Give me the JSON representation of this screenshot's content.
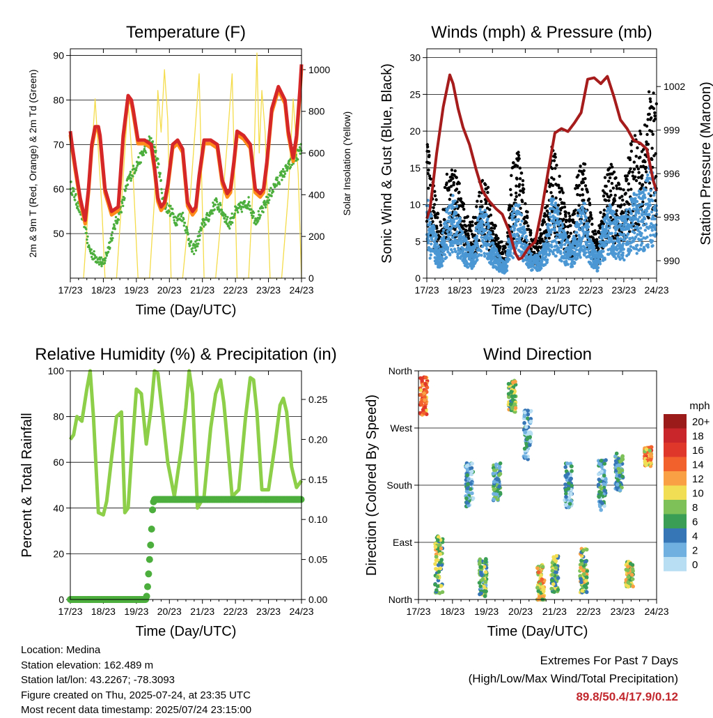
{
  "colors": {
    "temp2m": "#d62728",
    "temp9m": "#ff8c1a",
    "dewpoint": "#4cae3c",
    "solar": "#f4dc4a",
    "gust": "#000000",
    "wind": "#4a97d4",
    "pressure": "#a61c1c",
    "rh": "#8ecf4a",
    "precip": "#4cae3c"
  },
  "chart_data": [
    {
      "type": "line",
      "id": "temperature",
      "title": "Temperature (F)",
      "xlabel": "Time (Day/UTC)",
      "ylabel": "2m & 9m T (Red, Orange) & 2m Td (Green)",
      "ylabel_right": "Solar Insolation (Yellow)",
      "x_ticks": [
        "17/23",
        "18/23",
        "19/23",
        "20/23",
        "21/23",
        "22/23",
        "23/23",
        "24/23"
      ],
      "ylim": [
        40,
        91.5
      ],
      "y_ticks": [
        50,
        60,
        70,
        80,
        90
      ],
      "ylim_right": [
        0,
        1100
      ],
      "y_ticks_right": [
        0,
        200,
        400,
        600,
        800,
        1000
      ],
      "grid": "horizontal",
      "series": [
        {
          "key": "t2m",
          "x": [
            0,
            0.05,
            0.15,
            0.3,
            0.45,
            0.55,
            0.65,
            0.75,
            0.85,
            0.9,
            1.05,
            1.25,
            1.45,
            1.6,
            1.75,
            1.85,
            1.9,
            2.05,
            2.25,
            2.45,
            2.55,
            2.65,
            2.75,
            2.85,
            2.95,
            3.1,
            3.25,
            3.4,
            3.55,
            3.7,
            3.8,
            3.9,
            4.05,
            4.25,
            4.45,
            4.6,
            4.75,
            4.85,
            4.95,
            5.05,
            5.25,
            5.45,
            5.6,
            5.75,
            5.85,
            5.95,
            6.1,
            6.3,
            6.5,
            6.6,
            6.75,
            6.85,
            6.95,
            7.0
          ],
          "values": [
            73,
            70,
            65,
            58,
            53,
            60,
            70,
            74,
            74,
            72,
            60,
            55,
            56,
            72,
            81,
            80,
            78,
            71,
            71,
            70,
            65,
            58,
            56,
            57,
            61,
            70,
            71,
            69,
            57,
            55,
            56,
            63,
            71,
            71,
            70,
            62,
            59,
            60,
            66,
            73,
            72,
            70,
            60,
            59,
            60,
            66,
            78,
            83,
            80,
            73,
            67,
            72,
            82,
            88
          ]
        },
        {
          "key": "td2m",
          "x": [
            0,
            0.15,
            0.3,
            0.45,
            0.55,
            0.7,
            0.9,
            1.0,
            1.2,
            1.4,
            1.6,
            1.75,
            1.9,
            2.05,
            2.2,
            2.4,
            2.55,
            2.7,
            2.8,
            2.9,
            3.05,
            3.2,
            3.4,
            3.55,
            3.7,
            3.85,
            4.0,
            4.2,
            4.4,
            4.6,
            4.8,
            5.0,
            5.2,
            5.4,
            5.6,
            5.8,
            6.0,
            6.2,
            6.4,
            6.6,
            6.8,
            7.0
          ],
          "values": [
            61,
            58,
            55,
            52,
            47,
            45,
            44,
            43,
            48,
            53,
            57,
            62,
            64,
            66,
            68,
            71,
            69,
            64,
            58,
            56,
            55,
            53,
            54,
            50,
            46,
            48,
            52,
            54,
            57,
            55,
            52,
            55,
            56,
            57,
            53,
            55,
            58,
            61,
            63,
            65,
            67,
            69
          ]
        },
        {
          "key": "solar",
          "x": [
            0.4,
            0.55,
            0.75,
            0.95,
            1.05,
            1.4,
            1.6,
            1.75,
            1.9,
            2.05,
            2.4,
            2.55,
            2.65,
            2.75,
            2.85,
            2.95,
            3.05,
            3.4,
            3.6,
            3.75,
            3.9,
            4.05,
            4.4,
            4.6,
            4.75,
            4.9,
            5.05,
            5.4,
            5.55,
            5.65,
            5.72,
            5.8,
            5.9,
            6.05,
            6.4,
            6.6,
            6.75,
            6.9,
            7.0
          ],
          "values": [
            0,
            350,
            860,
            350,
            0,
            0,
            480,
            850,
            500,
            0,
            0,
            380,
            900,
            700,
            1000,
            760,
            0,
            0,
            320,
            650,
            980,
            0,
            0,
            350,
            650,
            980,
            0,
            0,
            500,
            1080,
            600,
            900,
            700,
            0,
            0,
            400,
            860,
            500,
            0
          ]
        }
      ]
    },
    {
      "type": "scatter",
      "id": "winds",
      "title": "Winds (mph) & Pressure (mb)",
      "xlabel": "Time (Day/UTC)",
      "ylabel": "Sonic Wind & Gust (Blue, Black)",
      "ylabel_right": "Station Pressure (Maroon)",
      "x_ticks": [
        "17/23",
        "18/23",
        "19/23",
        "20/23",
        "21/23",
        "22/23",
        "23/23",
        "24/23"
      ],
      "ylim": [
        0,
        31.2
      ],
      "y_ticks": [
        0,
        5,
        10,
        15,
        20,
        25,
        30
      ],
      "ylim_right": [
        988.8,
        1004.6
      ],
      "y_ticks_right": [
        990,
        993,
        996,
        999,
        1002
      ],
      "grid": "horizontal",
      "series": [
        {
          "key": "wind_env",
          "x": [
            0,
            0.2,
            0.4,
            0.6,
            0.8,
            1.0,
            1.2,
            1.4,
            1.6,
            1.8,
            2.0,
            2.2,
            2.4,
            2.6,
            2.8,
            3.0,
            3.2,
            3.4,
            3.6,
            3.8,
            4.0,
            4.2,
            4.4,
            4.6,
            4.8,
            5.0,
            5.2,
            5.4,
            5.6,
            5.8,
            6.0,
            6.2,
            6.4,
            6.6,
            6.8,
            7.0
          ],
          "values": [
            11,
            7,
            4,
            9,
            11,
            8,
            5,
            4,
            9,
            9,
            5,
            3,
            2,
            9,
            10,
            6,
            3,
            3,
            5,
            11,
            9,
            6,
            4,
            9,
            10,
            5,
            3,
            8,
            10,
            8,
            8,
            11,
            11,
            12,
            15,
            12
          ]
        },
        {
          "key": "gust_env",
          "x": [
            0,
            0.2,
            0.4,
            0.6,
            0.8,
            1.0,
            1.2,
            1.4,
            1.6,
            1.8,
            2.0,
            2.2,
            2.4,
            2.6,
            2.8,
            3.0,
            3.2,
            3.4,
            3.6,
            3.8,
            4.0,
            4.2,
            4.4,
            4.6,
            4.8,
            5.0,
            5.2,
            5.4,
            5.6,
            5.8,
            6.0,
            6.2,
            6.4,
            6.6,
            6.8,
            7.0
          ],
          "values": [
            18,
            12,
            7,
            13,
            15,
            12,
            8,
            7,
            12,
            13,
            8,
            5,
            4,
            14,
            16,
            10,
            5,
            5,
            9,
            17,
            14,
            10,
            7,
            14,
            16,
            8,
            5,
            12,
            15,
            12,
            12,
            17,
            18,
            20,
            24,
            22
          ]
        },
        {
          "key": "pressure",
          "x": [
            0,
            0.1,
            0.3,
            0.5,
            0.7,
            0.8,
            0.95,
            1.1,
            1.3,
            1.5,
            1.7,
            1.9,
            2.1,
            2.3,
            2.5,
            2.7,
            2.8,
            2.9,
            3.1,
            3.3,
            3.5,
            3.7,
            3.9,
            4.1,
            4.3,
            4.5,
            4.7,
            4.9,
            5.1,
            5.3,
            5.5,
            5.7,
            5.9,
            6.1,
            6.3,
            6.5,
            6.7,
            6.9,
            7.0
          ],
          "values": [
            992.9,
            993.6,
            997.4,
            1000.6,
            1002.8,
            1002.2,
            1000.5,
            999.2,
            998.0,
            996.3,
            994.8,
            994.1,
            993.6,
            993.2,
            992.1,
            990.5,
            990.1,
            990.2,
            990.9,
            991.3,
            993.5,
            996.2,
            998.8,
            999.1,
            998.9,
            999.5,
            1000.2,
            1002.5,
            1002.6,
            1002.2,
            1002.7,
            1001.3,
            999.7,
            999.1,
            998.3,
            998.1,
            997.7,
            995.5,
            994.8
          ]
        }
      ]
    },
    {
      "type": "line",
      "id": "humidity",
      "title": "Relative Humidity (%) & Precipitation (in)",
      "xlabel": "Time (Day/UTC)",
      "ylabel": "Percent & Total Rainfall",
      "x_ticks": [
        "17/23",
        "18/23",
        "19/23",
        "20/23",
        "21/23",
        "22/23",
        "23/23",
        "24/23"
      ],
      "ylim": [
        0,
        100
      ],
      "y_ticks": [
        0,
        20,
        40,
        60,
        80,
        100
      ],
      "ylim_right": [
        0,
        0.2857
      ],
      "y_ticks_right": [
        0.0,
        0.05,
        0.1,
        0.15,
        0.2,
        0.25
      ],
      "grid": "horizontal",
      "series": [
        {
          "key": "rh",
          "x": [
            0,
            0.1,
            0.2,
            0.35,
            0.5,
            0.6,
            0.7,
            0.85,
            1.0,
            1.1,
            1.25,
            1.4,
            1.55,
            1.65,
            1.75,
            1.85,
            2.0,
            2.15,
            2.3,
            2.45,
            2.55,
            2.65,
            2.8,
            2.95,
            3.15,
            3.35,
            3.5,
            3.6,
            3.7,
            3.85,
            4.05,
            4.25,
            4.4,
            4.55,
            4.65,
            4.75,
            4.9,
            5.1,
            5.3,
            5.45,
            5.55,
            5.65,
            5.8,
            6.0,
            6.2,
            6.35,
            6.45,
            6.55,
            6.7,
            6.85,
            7.0
          ],
          "values": [
            70,
            72,
            80,
            78,
            92,
            100,
            80,
            38,
            37,
            43,
            62,
            80,
            82,
            38,
            40,
            62,
            92,
            90,
            68,
            84,
            100,
            99,
            80,
            60,
            45,
            65,
            84,
            100,
            90,
            40,
            45,
            75,
            90,
            96,
            86,
            70,
            45,
            48,
            79,
            97,
            96,
            82,
            48,
            48,
            68,
            85,
            88,
            82,
            58,
            49,
            52
          ]
        },
        {
          "key": "precip",
          "x": [
            0,
            1.5,
            2.3,
            2.35,
            2.4,
            2.45,
            2.5,
            2.55,
            7.0
          ],
          "values": [
            0,
            0,
            0,
            0.02,
            0.05,
            0.08,
            0.12,
            0.125,
            0.125
          ]
        }
      ]
    },
    {
      "type": "scatter",
      "id": "wind_direction",
      "title": "Wind Direction",
      "xlabel": "Time (Day/UTC)",
      "ylabel": "Direction (Colored By Speed)",
      "x_ticks": [
        "17/23",
        "18/23",
        "19/23",
        "20/23",
        "21/23",
        "22/23",
        "23/23",
        "24/23"
      ],
      "y_ticks": [
        "North",
        "East",
        "South",
        "West",
        "North"
      ],
      "ylim": [
        0,
        360
      ],
      "grid": "horizontal",
      "legend": {
        "title": "mph",
        "labels": [
          "20+",
          "18",
          "16",
          "14",
          "12",
          "10",
          "8",
          "6",
          "4",
          "2",
          "0"
        ],
        "colors": [
          "#9b1b1b",
          "#c8262a",
          "#e0372b",
          "#f2602c",
          "#f8a043",
          "#f2de55",
          "#7fc159",
          "#3a9e55",
          "#3676b7",
          "#6fb0e0",
          "#b8def3"
        ],
        "position": "right"
      },
      "clusters": [
        {
          "x": 0.15,
          "dir": 320,
          "spread": 30,
          "speed": 13
        },
        {
          "x": 0.6,
          "dir": 55,
          "spread": 45,
          "speed": 8
        },
        {
          "x": 1.5,
          "dir": 180,
          "spread": 35,
          "speed": 3
        },
        {
          "x": 1.9,
          "dir": 35,
          "spread": 30,
          "speed": 6
        },
        {
          "x": 2.3,
          "dir": 185,
          "spread": 30,
          "speed": 5
        },
        {
          "x": 2.75,
          "dir": 320,
          "spread": 25,
          "speed": 8
        },
        {
          "x": 3.2,
          "dir": 260,
          "spread": 40,
          "speed": 2
        },
        {
          "x": 3.6,
          "dir": 25,
          "spread": 30,
          "speed": 10
        },
        {
          "x": 4.0,
          "dir": 40,
          "spread": 30,
          "speed": 7
        },
        {
          "x": 4.4,
          "dir": 180,
          "spread": 35,
          "speed": 3
        },
        {
          "x": 4.85,
          "dir": 45,
          "spread": 35,
          "speed": 8
        },
        {
          "x": 5.4,
          "dir": 180,
          "spread": 40,
          "speed": 4
        },
        {
          "x": 5.9,
          "dir": 200,
          "spread": 30,
          "speed": 5
        },
        {
          "x": 6.2,
          "dir": 40,
          "spread": 20,
          "speed": 9
        },
        {
          "x": 6.75,
          "dir": 225,
          "spread": 15,
          "speed": 12
        }
      ]
    }
  ],
  "info": {
    "location": "Location: Medina",
    "elevation": "Station elevation: 162.489 m",
    "latlon": "Station lat/lon: 43.2267; -78.3093",
    "created": "Figure created on Thu, 2025-07-24, at 23:35 UTC",
    "recent": "Most recent data timestamp: 2025/07/24 23:15:00"
  },
  "extremes": {
    "line1": "Extremes For Past 7 Days",
    "line2": "(High/Low/Max Wind/Total Precipitation)",
    "values": "89.8/50.4/17.9/0.12"
  }
}
